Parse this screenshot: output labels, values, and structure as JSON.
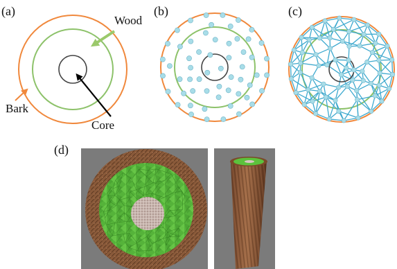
{
  "panels": {
    "a": {
      "label": "(a)",
      "wood": "Wood",
      "bark": "Bark",
      "core": "Core"
    },
    "b": {
      "label": "(b)"
    },
    "c": {
      "label": "(c)"
    },
    "d": {
      "label": "(d)"
    }
  },
  "colors": {
    "bark_ring": "#f0883c",
    "wood_ring": "#8dc26a",
    "core_ring": "#444444",
    "node": "#a8dde8",
    "node_stroke": "#6fb3c7",
    "mesh_line": "#3da9cf",
    "wood_arrow": "#9bc96b",
    "bark_arrow": "#f0883c",
    "core_arrow": "#000000",
    "render_bg": "#7b7b7b",
    "render_bark": "#8a5a3a",
    "render_wood": "#55b33a",
    "render_core": "#c9b7b0"
  }
}
